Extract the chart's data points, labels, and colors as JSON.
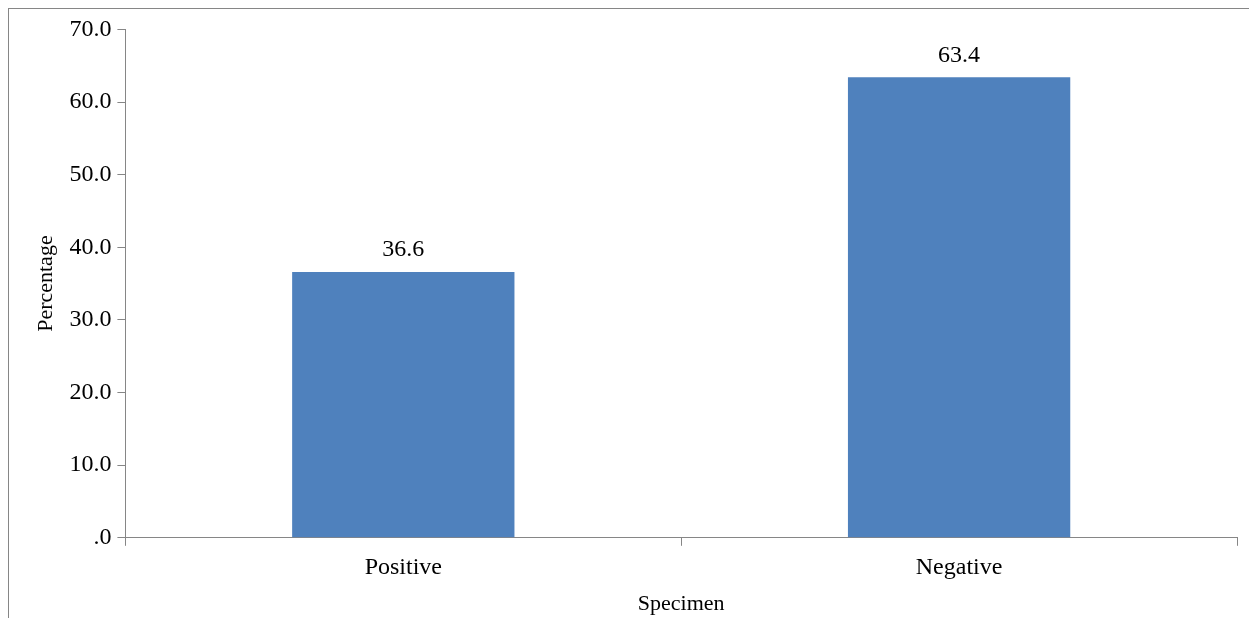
{
  "chart_data": {
    "type": "bar",
    "xlabel": "Specimen",
    "ylabel": "Percentage",
    "categories": [
      "Positive",
      "Negative"
    ],
    "values": [
      36.6,
      63.4
    ],
    "color": "#4f81bd",
    "ylim": [
      0,
      70
    ],
    "yticks": [
      {
        "value": 0,
        "label": ".0"
      },
      {
        "value": 10,
        "label": "10.0"
      },
      {
        "value": 20,
        "label": "20.0"
      },
      {
        "value": 30,
        "label": "30.0"
      },
      {
        "value": 40,
        "label": "40.0"
      },
      {
        "value": 50,
        "label": "50.0"
      },
      {
        "value": 60,
        "label": "60.0"
      },
      {
        "value": 70,
        "label": "70.0"
      }
    ],
    "data_labels": true,
    "legend": false
  }
}
